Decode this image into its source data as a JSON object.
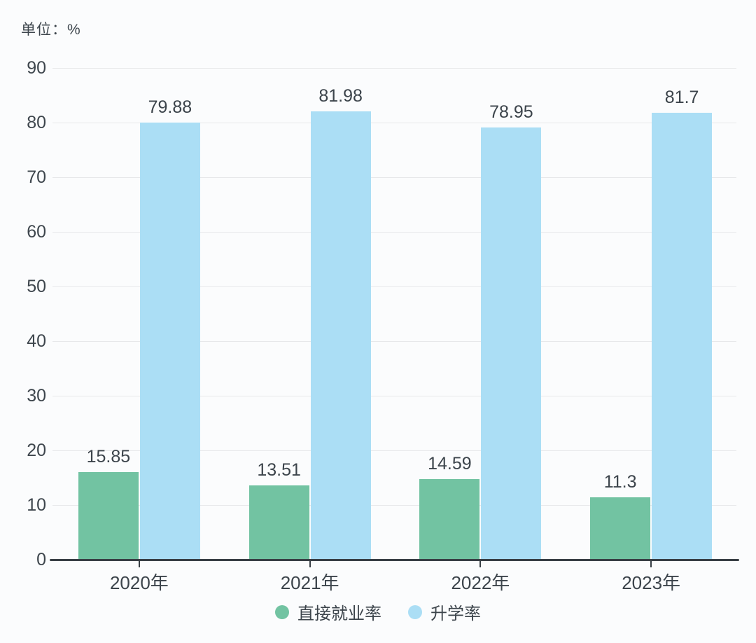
{
  "chart_data": {
    "type": "bar",
    "unit_label": "单位：%",
    "categories": [
      "2020年",
      "2021年",
      "2022年",
      "2023年"
    ],
    "series": [
      {
        "name": "直接就业率",
        "color": "#72c3a2",
        "values": [
          15.85,
          13.51,
          14.59,
          11.3
        ]
      },
      {
        "name": "升学率",
        "color": "#abdef5",
        "values": [
          79.88,
          81.98,
          78.95,
          81.7
        ]
      }
    ],
    "ylim": [
      0,
      90
    ],
    "yticks": [
      0,
      10,
      20,
      30,
      40,
      50,
      60,
      70,
      80,
      90
    ],
    "grid": true,
    "legend_position": "bottom",
    "colors": {
      "background": "#fbfcfd",
      "gridline": "#e7e8ea",
      "axis_line": "#383f45",
      "text": "#3d454c"
    }
  }
}
